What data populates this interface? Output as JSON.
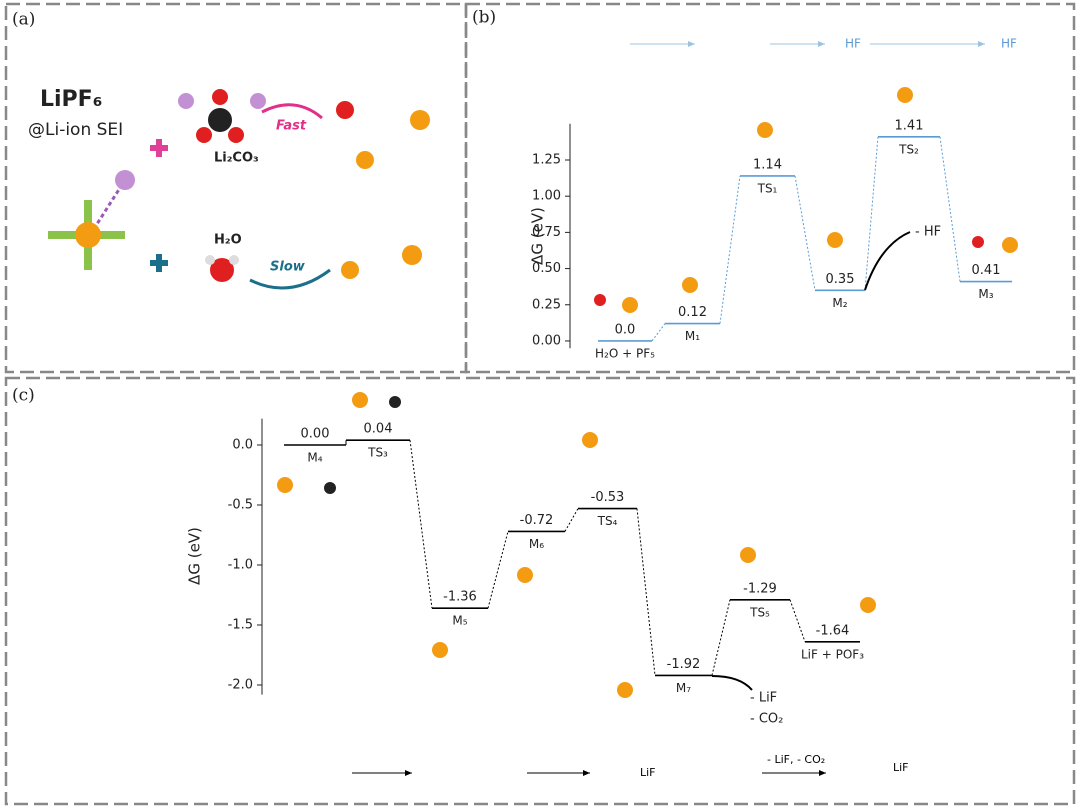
{
  "panel_a": {
    "label": "(a)",
    "compound": "LiPF₆",
    "context": "@Li-ion SEI",
    "reactant_1": "Li₂CO₃",
    "reactant_2": "H₂O",
    "rate_1": "Fast",
    "rate_2": "Slow"
  },
  "chart_data": [
    {
      "type": "energy",
      "title": "(b)",
      "ylabel": "ΔG (eV)",
      "color": "#5b9bd5",
      "categories": [
        "H₂O + PF₅",
        "M₁",
        "TS₁",
        "M₂",
        "TS₂",
        "M₃"
      ],
      "values": [
        0.0,
        0.12,
        1.14,
        0.35,
        1.41,
        0.41
      ],
      "value_labels": [
        "0.0",
        "0.12",
        "1.14",
        "0.35",
        "1.41",
        "0.41"
      ],
      "ylim": [
        -0.05,
        1.5
      ],
      "yticks": [
        {
          "value": 0,
          "label": "0.00"
        },
        0.25,
        {
          "value": 0.5,
          "label": "0.50"
        },
        0.75,
        {
          "value": 1,
          "label": "1.00"
        },
        1.25
      ],
      "annotations": [
        "- HF"
      ],
      "scheme": [
        "HF",
        "HF"
      ]
    },
    {
      "type": "energy",
      "title": "(c)",
      "ylabel": "ΔG (eV)",
      "color": "#000000",
      "categories": [
        "M₄",
        "TS₃",
        "M₅",
        "M₆",
        "TS₄",
        "M₇",
        "TS₅",
        "LiF + POF₃"
      ],
      "values": [
        0.0,
        0.04,
        -1.36,
        -0.72,
        -0.53,
        -1.92,
        -1.29,
        -1.64
      ],
      "value_labels": [
        "0.00",
        "0.04",
        "-1.36",
        "-0.72",
        "-0.53",
        "-1.92",
        "-1.29",
        "-1.64"
      ],
      "ylim": [
        -2.08,
        0.22
      ],
      "yticks": [
        {
          "value": 0,
          "label": "0.0"
        },
        -0.5,
        {
          "value": -1,
          "label": "-1.0"
        },
        -1.5,
        {
          "value": -2,
          "label": "-2.0"
        }
      ],
      "annotations": [
        "- LiF",
        "- CO₂"
      ],
      "scheme": [
        "LiF",
        "- LiF, - CO₂",
        "LiF"
      ]
    }
  ]
}
